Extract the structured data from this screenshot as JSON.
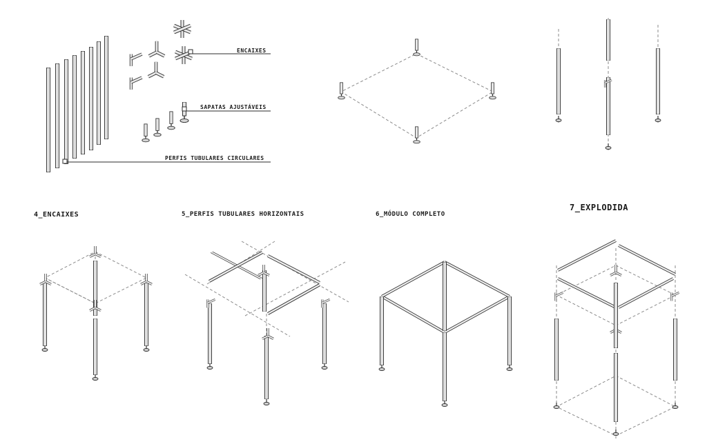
{
  "callouts": {
    "encaixes": "ENCAIXES",
    "sapatas": "SAPATAS AJUSTÁVEIS",
    "perfis": "PERFIS TUBULARES CIRCULARES"
  },
  "panels": {
    "p4": "4_ENCAIXES",
    "p5": "5_PERFIS TUBULARES HORIZONTAIS",
    "p6": "6_MÓDULO COMPLETO",
    "p7": "7_EXPLODIDA"
  },
  "colors": {
    "line": "#3a3a3a",
    "dash": "#8a8a8a",
    "fill": "#e6e6e6",
    "bg": "#ffffff"
  },
  "icons": [
    "vertical-tube-icon",
    "connector-icon",
    "adjustable-foot-icon"
  ]
}
